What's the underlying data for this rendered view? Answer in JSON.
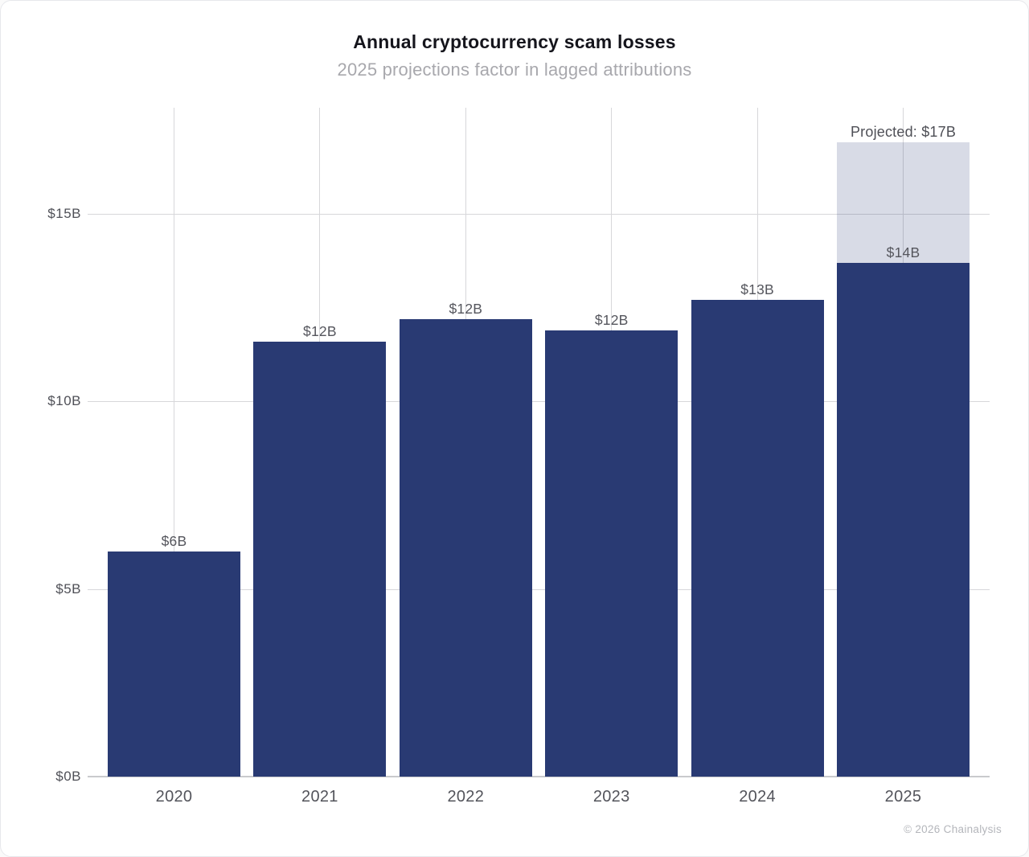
{
  "header": {
    "title": "Annual cryptocurrency scam losses",
    "subtitle": "2025 projections factor in lagged attributions"
  },
  "footer": {
    "credit": "© 2026 Chainalysis"
  },
  "colors": {
    "bar": "#293a73",
    "projection_overlay": "rgba(41,58,115,0.18)",
    "gridline": "#d7d7da",
    "axis_baseline": "#c9cacd",
    "title_text": "#15151c",
    "subtitle_text": "#a8a8ad",
    "label_text": "#55565d",
    "footer_text": "#b4b6bb"
  },
  "chart_data": {
    "type": "bar",
    "title": "Annual cryptocurrency scam losses",
    "subtitle": "2025 projections factor in lagged attributions",
    "categories": [
      "2020",
      "2021",
      "2022",
      "2023",
      "2024",
      "2025"
    ],
    "series": [
      {
        "name": "actual",
        "values": [
          6.0,
          11.6,
          12.2,
          11.9,
          12.7,
          13.7
        ],
        "color": "#293a73"
      },
      {
        "name": "projected-additional",
        "values": [
          0,
          0,
          0,
          0,
          0,
          3.2
        ],
        "color": "rgba(41,58,115,0.18)"
      }
    ],
    "bar_labels": [
      "$6B",
      "$12B",
      "$12B",
      "$12B",
      "$13B",
      "$14B"
    ],
    "projection_annotation": "Projected: $17B",
    "projection_total": 16.9,
    "projection_category": "2025",
    "y_ticks": [
      {
        "value": 0,
        "label": "$0B"
      },
      {
        "value": 5,
        "label": "$5B"
      },
      {
        "value": 10,
        "label": "$10B"
      },
      {
        "value": 15,
        "label": "$15B"
      }
    ],
    "xlabel": "",
    "ylabel": "",
    "ylim": [
      0,
      17.9
    ],
    "grid": "both",
    "legend": "none"
  }
}
